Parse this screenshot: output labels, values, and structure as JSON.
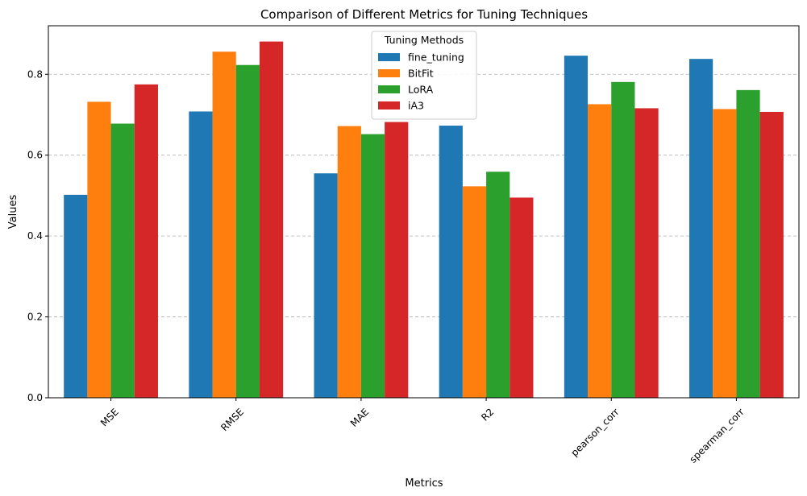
{
  "chart_data": {
    "type": "bar",
    "title": "Comparison of Different Metrics for Tuning Techniques",
    "xlabel": "Metrics",
    "ylabel": "Values",
    "categories": [
      "MSE",
      "RMSE",
      "MAE",
      "R2",
      "pearson_corr",
      "spearman_corr"
    ],
    "yticks": [
      "0.0",
      "0.2",
      "0.4",
      "0.6",
      "0.8"
    ],
    "ylim": [
      0,
      0.92
    ],
    "grid": "y-dashed",
    "legend": {
      "title": "Tuning Methods",
      "placement": "top-center"
    },
    "series": [
      {
        "name": "fine_tuning",
        "color": "#1f77b4",
        "values": [
          0.502,
          0.708,
          0.555,
          0.673,
          0.846,
          0.838
        ]
      },
      {
        "name": "BitFit",
        "color": "#ff7f0e",
        "values": [
          0.732,
          0.856,
          0.672,
          0.523,
          0.726,
          0.714
        ]
      },
      {
        "name": "LoRA",
        "color": "#2ca02c",
        "values": [
          0.678,
          0.823,
          0.652,
          0.559,
          0.781,
          0.761
        ]
      },
      {
        "name": "iA3",
        "color": "#d62728",
        "values": [
          0.775,
          0.881,
          0.682,
          0.495,
          0.716,
          0.707
        ]
      }
    ]
  }
}
